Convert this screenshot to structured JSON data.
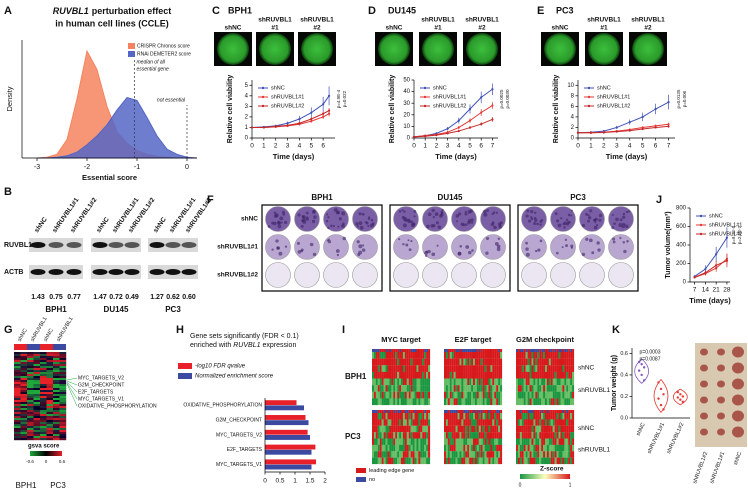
{
  "figure": {
    "panel_labels": [
      "A",
      "B",
      "C",
      "D",
      "E",
      "F",
      "G",
      "H",
      "I",
      "J",
      "K"
    ],
    "B": {
      "columns": [
        "shNC",
        "shRUVBL1#1",
        "shRUVBL1#2"
      ],
      "rows": [
        "RUVBL1",
        "ACTB"
      ],
      "groups": [
        {
          "name": "BPH1",
          "quant": [
            "1.43",
            "0.75",
            "0.77"
          ]
        },
        {
          "name": "DU145",
          "quant": [
            "1.47",
            "0.72",
            "0.49"
          ]
        },
        {
          "name": "PC3",
          "quant": [
            "1.27",
            "0.62",
            "0.60"
          ]
        }
      ]
    },
    "F": {
      "cell_lines": [
        "BPH1",
        "DU145",
        "PC3"
      ],
      "rows": [
        "shNC",
        "shRUVBL1#1",
        "shRUVBL1#2"
      ]
    },
    "G": {
      "groups": [
        "shNC",
        "shRUVBL1"
      ],
      "gene_sets": [
        "MYC_TARGETS_V2",
        "G2M_CHECKPOINT",
        "E2F_TARGETS",
        "MYC_TARGETS_V1",
        "OXIDATIVE_PHOSPHORYLATION"
      ],
      "legend_title": "gsva score",
      "legend_ticks": [
        "-0.6",
        "0",
        "0.6"
      ],
      "cell_lines": [
        "BPH1",
        "PC3"
      ]
    },
    "I": {
      "gene_sets": [
        "MYC target",
        "E2F target",
        "G2M checkpoint"
      ],
      "cell_lines": [
        "BPH1",
        "PC3"
      ],
      "conditions": [
        "shNC",
        "shRUVBL1"
      ],
      "legend": [
        "leading edge gene",
        "no"
      ],
      "scale_title": "Z-score",
      "scale_ticks": [
        "0",
        "1"
      ]
    }
  },
  "chart_data": [
    {
      "type": "area",
      "title_gene": "RUVBL1",
      "title_lines": [
        "perturbation effect",
        "in human cell lines (CCLE)"
      ],
      "x": [
        -3.0,
        -2.8,
        -2.6,
        -2.4,
        -2.2,
        -2.0,
        -1.8,
        -1.6,
        -1.4,
        -1.2,
        -1.0,
        -0.8,
        -0.6,
        -0.4,
        -0.2,
        0.0,
        0.2
      ],
      "series": [
        {
          "name": "CRISPR Chronos score",
          "color": "#f4845f",
          "values": [
            0,
            0.01,
            0.05,
            0.25,
            0.8,
            1.45,
            1.2,
            0.7,
            0.35,
            0.2,
            0.1,
            0.05,
            0.02,
            0.01,
            0,
            0,
            0
          ]
        },
        {
          "name": "RNAi DEMETER2 score",
          "color": "#5566c4",
          "values": [
            0,
            0,
            0.01,
            0.03,
            0.08,
            0.18,
            0.3,
            0.45,
            0.65,
            0.82,
            0.78,
            0.55,
            0.3,
            0.12,
            0.05,
            0.01,
            0
          ]
        }
      ],
      "xlim": [
        -3.3,
        0.2
      ],
      "ylim": [
        0,
        1.6
      ],
      "xticks": [
        -3,
        -2,
        -1,
        0
      ],
      "xlabel": "Essential score",
      "ylabel": "Density",
      "legend": "top-right",
      "annotations": [
        {
          "lines": [
            "median of all",
            "essential gene"
          ],
          "x": -1.05
        },
        {
          "lines": [
            "not essential"
          ],
          "x": 0
        }
      ]
    },
    {
      "type": "line",
      "cell_line": "BPH1",
      "image_labels": [
        [
          "shNC"
        ],
        [
          "shRUVBL1",
          "#1"
        ],
        [
          "shRUVBL1",
          "#2"
        ]
      ],
      "x": [
        0,
        1,
        2,
        3,
        4,
        5,
        6,
        6.5
      ],
      "series": [
        {
          "name": "shNC",
          "color": "#3f51b5",
          "values": [
            1,
            1.05,
            1.15,
            1.4,
            1.8,
            2.4,
            3.2,
            4.0
          ],
          "errors": [
            0.02,
            0.05,
            0.1,
            0.15,
            0.3,
            0.5,
            0.7,
            0.9
          ]
        },
        {
          "name": "shRUVBL1#1",
          "color": "#e53935",
          "values": [
            1,
            1,
            1.05,
            1.15,
            1.3,
            1.6,
            2.0,
            2.3
          ],
          "errors": [
            0.02,
            0.03,
            0.05,
            0.08,
            0.1,
            0.15,
            0.2,
            0.25
          ]
        },
        {
          "name": "shRUVBL1#2",
          "color": "#c62828",
          "values": [
            1,
            1,
            1.1,
            1.2,
            1.4,
            1.8,
            2.3,
            2.6
          ],
          "errors": [
            0.02,
            0.03,
            0.05,
            0.08,
            0.1,
            0.15,
            0.2,
            0.25
          ]
        }
      ],
      "xlim": [
        0,
        7
      ],
      "ylim": [
        0,
        5.5
      ],
      "xticks": [
        0,
        1,
        2,
        3,
        4,
        5,
        6
      ],
      "yticks": [
        0,
        1,
        2,
        3,
        4,
        5
      ],
      "xlabel": "Time (days)",
      "ylabel": "Relative cell viability",
      "p_values": [
        "p=4.9E-4",
        "p=0.022"
      ]
    },
    {
      "type": "line",
      "cell_line": "DU145",
      "image_labels": [
        [
          "shNC"
        ],
        [
          "shRUVBL1",
          "#1"
        ],
        [
          "shRUVBL1",
          "#2"
        ]
      ],
      "x": [
        0,
        1,
        2,
        3,
        4,
        5,
        6,
        7
      ],
      "series": [
        {
          "name": "shNC",
          "color": "#3f51b5",
          "values": [
            1,
            2,
            4,
            8,
            15,
            25,
            35,
            42
          ],
          "errors": [
            0.2,
            0.4,
            0.8,
            1.5,
            2.5,
            4,
            5,
            5
          ]
        },
        {
          "name": "shRUVBL1#1",
          "color": "#e53935",
          "values": [
            1,
            2,
            3,
            5,
            9,
            15,
            22,
            28
          ],
          "errors": [
            0.2,
            0.3,
            0.5,
            1,
            1.5,
            2,
            3,
            3
          ]
        },
        {
          "name": "shRUVBL1#2",
          "color": "#c62828",
          "values": [
            1,
            1.5,
            2.5,
            4,
            6,
            9,
            12,
            16
          ],
          "errors": [
            0.2,
            0.3,
            0.4,
            0.6,
            1,
            1.2,
            1.5,
            2
          ]
        }
      ],
      "xlim": [
        0,
        7.5
      ],
      "ylim": [
        0,
        50
      ],
      "xticks": [
        0,
        1,
        2,
        3,
        4,
        5,
        6,
        7
      ],
      "yticks": [
        0,
        10,
        20,
        30,
        40,
        50
      ],
      "xlabel": "Time (days)",
      "ylabel": "Relative cell viability",
      "p_values": [
        "p=0.0025",
        "p=0.0030"
      ]
    },
    {
      "type": "line",
      "cell_line": "PC3",
      "image_labels": [
        [
          "shNC"
        ],
        [
          "shRUVBL1",
          "#1"
        ],
        [
          "shRUVBL1",
          "#2"
        ]
      ],
      "x": [
        0,
        1,
        2,
        3,
        4,
        5,
        6,
        7
      ],
      "series": [
        {
          "name": "shNC",
          "color": "#3f51b5",
          "values": [
            1,
            1.1,
            1.3,
            2,
            3,
            4,
            5.5,
            6.8
          ],
          "errors": [
            0.05,
            0.1,
            0.2,
            0.3,
            0.5,
            0.8,
            1,
            1.4
          ]
        },
        {
          "name": "shRUVBL1#1",
          "color": "#e53935",
          "values": [
            1,
            1,
            1.1,
            1.3,
            1.6,
            2,
            2.3,
            2.6
          ],
          "errors": [
            0.05,
            0.05,
            0.1,
            0.1,
            0.15,
            0.2,
            0.25,
            0.3
          ]
        },
        {
          "name": "shRUVBL1#2",
          "color": "#c62828",
          "values": [
            1,
            1,
            1.05,
            1.2,
            1.4,
            1.7,
            2,
            2.2
          ],
          "errors": [
            0.05,
            0.05,
            0.1,
            0.1,
            0.15,
            0.2,
            0.2,
            0.25
          ]
        }
      ],
      "xlim": [
        0,
        7.5
      ],
      "ylim": [
        0,
        11
      ],
      "xticks": [
        0,
        1,
        2,
        3,
        4,
        5,
        6,
        7
      ],
      "yticks": [
        0,
        2,
        4,
        6,
        8,
        10
      ],
      "xlabel": "Time (days)",
      "ylabel": "Relative cell viability",
      "p_values": [
        "p=0.0135",
        "p=0.006"
      ]
    },
    {
      "type": "hbar",
      "title_lines": [
        "Gene sets significantly (FDR < 0.1)",
        "enriched with"
      ],
      "title_gene": "RUVBL1",
      "title_suffix": "expression",
      "categories": [
        "OXIDATIVE_PHOSPHORYLATION",
        "G2M_CHECKPOINT",
        "MYC_TARGETS_V2",
        "E2F_TARGETS",
        "MYC_TARGETS_V1"
      ],
      "series": [
        {
          "name": "-log10 FDR qvalue",
          "color": "#e8202a",
          "values": [
            1.05,
            1.35,
            1.42,
            1.68,
            1.7
          ]
        },
        {
          "name": "Normalized enrichment score",
          "color": "#3b4aa0",
          "values": [
            1.3,
            1.45,
            1.5,
            1.55,
            1.55
          ]
        }
      ],
      "xlim": [
        0,
        2
      ],
      "xticks": [
        0,
        0.5,
        1,
        1.5,
        2
      ]
    },
    {
      "type": "line",
      "x": [
        7,
        14,
        21,
        28
      ],
      "series": [
        {
          "name": "shNC",
          "color": "#3f51b5",
          "values": [
            60,
            140,
            300,
            480
          ],
          "errors": [
            15,
            40,
            80,
            110
          ]
        },
        {
          "name": "shRUVBL1#1",
          "color": "#e53935",
          "values": [
            50,
            90,
            150,
            250
          ],
          "errors": [
            10,
            20,
            40,
            60
          ]
        },
        {
          "name": "shRUVBL1#2",
          "color": "#c62828",
          "values": [
            50,
            100,
            180,
            230
          ],
          "errors": [
            10,
            25,
            50,
            70
          ]
        }
      ],
      "xlim": [
        4,
        30
      ],
      "ylim": [
        0,
        800
      ],
      "xticks": [
        7,
        14,
        21,
        28
      ],
      "yticks": [
        0,
        200,
        400,
        600,
        800
      ],
      "xlabel": "Time (days)",
      "ylabel": "Tumor volume(mm³)",
      "p_values": [
        "p=9.3E-5",
        "p=2.6E-7"
      ]
    },
    {
      "type": "violin",
      "categories": [
        "shNC",
        "shRUVBL1#1",
        "shRUVBL1#2"
      ],
      "values": [
        [
          0.52,
          0.5,
          0.47,
          0.44,
          0.4,
          0.35
        ],
        [
          0.33,
          0.27,
          0.22,
          0.18,
          0.12,
          0.08
        ],
        [
          0.24,
          0.22,
          0.2,
          0.19,
          0.17,
          0.15
        ]
      ],
      "colors": [
        "#7e57c2",
        "#e53935",
        "#e53935"
      ],
      "ylim": [
        0,
        0.65
      ],
      "yticks": [
        {
          "value": 0,
          "label": "0.0"
        },
        {
          "value": 0.2,
          "label": "0.2"
        },
        {
          "value": 0.4,
          "label": "0.4"
        },
        {
          "value": 0.6,
          "label": "0.6"
        }
      ],
      "ylabel": "Tumor weight (g)",
      "p_values": [
        "p=0.0003",
        "p=0.0087"
      ],
      "photo_labels": [
        "shRUVBL1#2",
        "shRUVBL1#1",
        "shNC"
      ]
    }
  ]
}
